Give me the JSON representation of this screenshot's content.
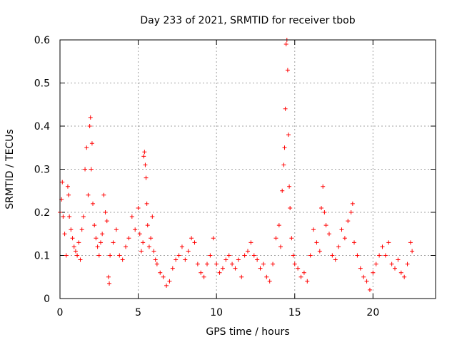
{
  "chart_data": {
    "type": "scatter",
    "title": "Day 233 of 2021, SRMTID for receiver tbob",
    "xlabel": "GPS time / hours",
    "ylabel": "SRMTID / TECUs",
    "xlim": [
      0,
      24
    ],
    "ylim": [
      0,
      0.6
    ],
    "x_ticks": [
      0,
      5,
      10,
      15,
      20
    ],
    "y_ticks": [
      0,
      0.1,
      0.2,
      0.3,
      0.4,
      0.5,
      0.6
    ],
    "x_tick_labels": [
      "0",
      "5",
      "10",
      "15",
      "20"
    ],
    "y_tick_labels": [
      "0",
      "0.1",
      "0.2",
      "0.3",
      "0.4",
      "0.5",
      "0.6"
    ],
    "grid": true,
    "marker": "plus",
    "color": "#ff0000",
    "series": [
      {
        "name": "SRMTID",
        "points": [
          [
            0.0,
            0.2
          ],
          [
            0.1,
            0.23
          ],
          [
            0.15,
            0.27
          ],
          [
            0.2,
            0.19
          ],
          [
            0.3,
            0.15
          ],
          [
            0.4,
            0.1
          ],
          [
            0.5,
            0.26
          ],
          [
            0.55,
            0.24
          ],
          [
            0.6,
            0.19
          ],
          [
            0.7,
            0.16
          ],
          [
            0.8,
            0.14
          ],
          [
            0.9,
            0.12
          ],
          [
            1.0,
            0.11
          ],
          [
            1.1,
            0.1
          ],
          [
            1.2,
            0.13
          ],
          [
            1.3,
            0.09
          ],
          [
            1.4,
            0.16
          ],
          [
            1.5,
            0.19
          ],
          [
            1.6,
            0.3
          ],
          [
            1.7,
            0.35
          ],
          [
            1.8,
            0.24
          ],
          [
            1.9,
            0.4
          ],
          [
            1.95,
            0.42
          ],
          [
            2.0,
            0.3
          ],
          [
            2.05,
            0.36
          ],
          [
            2.1,
            0.22
          ],
          [
            2.2,
            0.17
          ],
          [
            2.3,
            0.14
          ],
          [
            2.4,
            0.12
          ],
          [
            2.5,
            0.1
          ],
          [
            2.6,
            0.13
          ],
          [
            2.7,
            0.15
          ],
          [
            2.8,
            0.24
          ],
          [
            2.9,
            0.2
          ],
          [
            3.0,
            0.18
          ],
          [
            3.1,
            0.05
          ],
          [
            3.15,
            0.035
          ],
          [
            3.2,
            0.1
          ],
          [
            3.4,
            0.13
          ],
          [
            3.6,
            0.16
          ],
          [
            3.8,
            0.1
          ],
          [
            4.0,
            0.09
          ],
          [
            4.2,
            0.12
          ],
          [
            4.4,
            0.14
          ],
          [
            4.6,
            0.19
          ],
          [
            4.8,
            0.16
          ],
          [
            5.0,
            0.21
          ],
          [
            5.1,
            0.15
          ],
          [
            5.2,
            0.11
          ],
          [
            5.3,
            0.13
          ],
          [
            5.35,
            0.33
          ],
          [
            5.4,
            0.34
          ],
          [
            5.45,
            0.31
          ],
          [
            5.5,
            0.28
          ],
          [
            5.55,
            0.22
          ],
          [
            5.6,
            0.17
          ],
          [
            5.7,
            0.12
          ],
          [
            5.8,
            0.14
          ],
          [
            5.9,
            0.19
          ],
          [
            6.0,
            0.11
          ],
          [
            6.1,
            0.09
          ],
          [
            6.2,
            0.08
          ],
          [
            6.4,
            0.06
          ],
          [
            6.6,
            0.05
          ],
          [
            6.8,
            0.03
          ],
          [
            7.0,
            0.04
          ],
          [
            7.2,
            0.07
          ],
          [
            7.4,
            0.09
          ],
          [
            7.6,
            0.1
          ],
          [
            7.8,
            0.12
          ],
          [
            8.0,
            0.09
          ],
          [
            8.2,
            0.11
          ],
          [
            8.4,
            0.14
          ],
          [
            8.6,
            0.13
          ],
          [
            8.8,
            0.08
          ],
          [
            9.0,
            0.06
          ],
          [
            9.2,
            0.05
          ],
          [
            9.4,
            0.08
          ],
          [
            9.6,
            0.1
          ],
          [
            9.8,
            0.14
          ],
          [
            10.0,
            0.08
          ],
          [
            10.2,
            0.06
          ],
          [
            10.4,
            0.07
          ],
          [
            10.6,
            0.09
          ],
          [
            10.8,
            0.1
          ],
          [
            11.0,
            0.08
          ],
          [
            11.2,
            0.07
          ],
          [
            11.4,
            0.09
          ],
          [
            11.6,
            0.05
          ],
          [
            11.8,
            0.1
          ],
          [
            12.0,
            0.11
          ],
          [
            12.2,
            0.13
          ],
          [
            12.4,
            0.1
          ],
          [
            12.6,
            0.09
          ],
          [
            12.8,
            0.07
          ],
          [
            13.0,
            0.08
          ],
          [
            13.2,
            0.05
          ],
          [
            13.4,
            0.04
          ],
          [
            13.6,
            0.08
          ],
          [
            13.8,
            0.14
          ],
          [
            14.0,
            0.17
          ],
          [
            14.1,
            0.12
          ],
          [
            14.2,
            0.25
          ],
          [
            14.3,
            0.31
          ],
          [
            14.35,
            0.35
          ],
          [
            14.4,
            0.44
          ],
          [
            14.45,
            0.59
          ],
          [
            14.5,
            0.6
          ],
          [
            14.55,
            0.53
          ],
          [
            14.6,
            0.38
          ],
          [
            14.65,
            0.26
          ],
          [
            14.7,
            0.21
          ],
          [
            14.8,
            0.14
          ],
          [
            14.9,
            0.1
          ],
          [
            15.0,
            0.08
          ],
          [
            15.2,
            0.07
          ],
          [
            15.4,
            0.05
          ],
          [
            15.6,
            0.06
          ],
          [
            15.8,
            0.04
          ],
          [
            16.0,
            0.1
          ],
          [
            16.2,
            0.16
          ],
          [
            16.4,
            0.13
          ],
          [
            16.6,
            0.11
          ],
          [
            16.7,
            0.21
          ],
          [
            16.8,
            0.26
          ],
          [
            16.9,
            0.2
          ],
          [
            17.0,
            0.17
          ],
          [
            17.2,
            0.15
          ],
          [
            17.4,
            0.1
          ],
          [
            17.6,
            0.09
          ],
          [
            17.8,
            0.12
          ],
          [
            18.0,
            0.16
          ],
          [
            18.2,
            0.14
          ],
          [
            18.4,
            0.18
          ],
          [
            18.6,
            0.2
          ],
          [
            18.7,
            0.22
          ],
          [
            18.8,
            0.13
          ],
          [
            19.0,
            0.1
          ],
          [
            19.2,
            0.07
          ],
          [
            19.4,
            0.05
          ],
          [
            19.6,
            0.04
          ],
          [
            19.8,
            0.02
          ],
          [
            20.0,
            0.06
          ],
          [
            20.2,
            0.08
          ],
          [
            20.4,
            0.1
          ],
          [
            20.6,
            0.12
          ],
          [
            20.8,
            0.1
          ],
          [
            21.0,
            0.13
          ],
          [
            21.2,
            0.08
          ],
          [
            21.4,
            0.07
          ],
          [
            21.6,
            0.09
          ],
          [
            21.8,
            0.06
          ],
          [
            22.0,
            0.05
          ],
          [
            22.2,
            0.08
          ],
          [
            22.4,
            0.13
          ],
          [
            22.5,
            0.11
          ]
        ]
      }
    ]
  }
}
